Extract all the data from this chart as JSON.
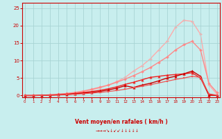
{
  "xlabel": "Vent moyen/en rafales ( km/h )",
  "xlim": [
    -0.3,
    23.3
  ],
  "ylim": [
    -0.5,
    26.5
  ],
  "yticks": [
    0,
    5,
    10,
    15,
    20,
    25
  ],
  "xticks": [
    0,
    1,
    2,
    3,
    4,
    5,
    6,
    7,
    8,
    9,
    10,
    11,
    12,
    13,
    14,
    15,
    16,
    17,
    18,
    19,
    20,
    21,
    22,
    23
  ],
  "bg_color": "#c8eeee",
  "grid_color": "#a8d4d4",
  "series": [
    {
      "x": [
        0,
        1,
        2,
        3,
        4,
        5,
        6,
        7,
        8,
        9,
        10,
        11,
        12,
        13,
        14,
        15,
        16,
        17,
        18,
        19,
        20,
        21,
        22,
        23
      ],
      "y": [
        0,
        0,
        0.1,
        0.2,
        0.3,
        0.5,
        0.8,
        1.1,
        1.6,
        2.2,
        3.0,
        4.0,
        5.2,
        7.0,
        8.5,
        10.5,
        13.0,
        15.5,
        19.5,
        21.5,
        21.2,
        17.5,
        3.0,
        0.3
      ],
      "color": "#ffaaaa",
      "lw": 1.0,
      "marker": "D",
      "ms": 2.0,
      "zorder": 1
    },
    {
      "x": [
        0,
        1,
        2,
        3,
        4,
        5,
        6,
        7,
        8,
        9,
        10,
        11,
        12,
        13,
        14,
        15,
        16,
        17,
        18,
        19,
        20,
        21,
        22,
        23
      ],
      "y": [
        0,
        0,
        0.1,
        0.2,
        0.4,
        0.6,
        0.9,
        1.3,
        1.8,
        2.4,
        3.0,
        3.8,
        4.7,
        5.7,
        6.8,
        8.0,
        9.5,
        11.0,
        13.0,
        14.5,
        15.5,
        13.0,
        3.5,
        0.8
      ],
      "color": "#ff8888",
      "lw": 1.0,
      "marker": "D",
      "ms": 2.0,
      "zorder": 2
    },
    {
      "x": [
        0,
        1,
        2,
        3,
        4,
        5,
        6,
        7,
        8,
        9,
        10,
        11,
        12,
        13,
        14,
        15,
        16,
        17,
        18,
        19,
        20,
        21,
        22,
        23
      ],
      "y": [
        0,
        0,
        0.05,
        0.1,
        0.2,
        0.3,
        0.5,
        0.7,
        0.9,
        1.2,
        1.6,
        2.1,
        2.8,
        2.3,
        3.0,
        3.5,
        4.2,
        5.0,
        5.5,
        6.2,
        7.0,
        5.5,
        0.15,
        0.05
      ],
      "color": "#cc0000",
      "lw": 1.0,
      "marker": "^",
      "ms": 2.5,
      "zorder": 4
    },
    {
      "x": [
        0,
        1,
        2,
        3,
        4,
        5,
        6,
        7,
        8,
        9,
        10,
        11,
        12,
        13,
        14,
        15,
        16,
        17,
        18,
        19,
        20,
        21,
        22,
        23
      ],
      "y": [
        0,
        0,
        0.05,
        0.15,
        0.25,
        0.4,
        0.6,
        0.85,
        1.15,
        1.5,
        1.95,
        2.5,
        3.2,
        3.8,
        4.5,
        5.2,
        5.5,
        5.8,
        6.0,
        6.2,
        6.5,
        5.0,
        0.1,
        0.05
      ],
      "color": "#ee2222",
      "lw": 1.0,
      "marker": "^",
      "ms": 2.5,
      "zorder": 3
    },
    {
      "x": [
        0,
        1,
        2,
        3,
        4,
        5,
        6,
        7,
        8,
        9,
        10,
        11,
        12,
        13,
        14,
        15,
        16,
        17,
        18,
        19,
        20,
        21,
        22,
        23
      ],
      "y": [
        0,
        0,
        0.05,
        0.1,
        0.15,
        0.25,
        0.38,
        0.52,
        0.7,
        0.9,
        1.15,
        1.45,
        1.8,
        2.2,
        2.65,
        3.1,
        3.6,
        4.1,
        4.6,
        5.0,
        5.5,
        5.2,
        0.5,
        0.1
      ],
      "color": "#ee5555",
      "lw": 0.9,
      "marker": "s",
      "ms": 1.8,
      "zorder": 5
    }
  ],
  "wind_arrows": "→→→↘↓↙↙↓↓↓↓↓"
}
